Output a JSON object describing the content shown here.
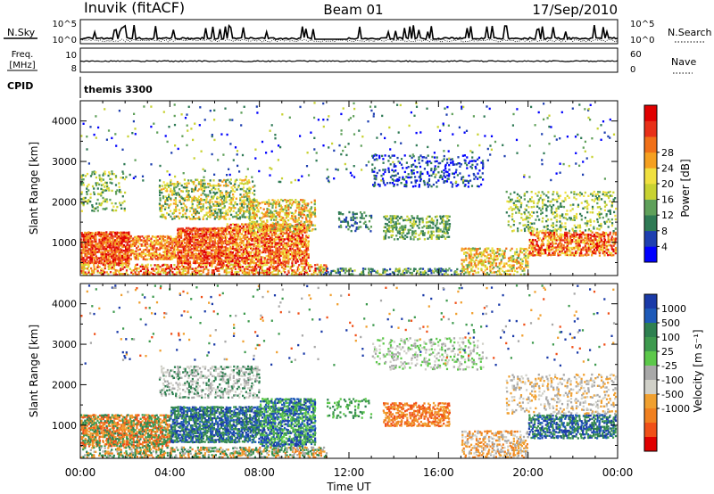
{
  "header": {
    "station": "Inuvik (fitACF)",
    "beam": "Beam 01",
    "date": "17/Sep/2010"
  },
  "strip_panels": {
    "nsky": {
      "label": "N.Sky",
      "scale_top": "10^5",
      "scale_bottom": "10^0"
    },
    "nsearch": {
      "label": "N.Search",
      "scale_top": "10^5",
      "scale_bottom": "10^0"
    },
    "freq": {
      "label_line1": "Freq.",
      "label_line2": "[MHz]",
      "ticks": [
        "10",
        "8"
      ]
    },
    "nave": {
      "label": "Nave",
      "ticks": [
        "60",
        "0"
      ]
    },
    "cpid": {
      "label": "CPID",
      "mode": "themis 3300"
    }
  },
  "chart_data": [
    {
      "type": "heatmap",
      "name": "power",
      "ylabel": "Slant Range [km]",
      "y_ticks": [
        "1000",
        "2000",
        "3000",
        "4000"
      ],
      "y_range_km": [
        180,
        4500
      ],
      "x_range_hours": [
        0,
        24
      ],
      "colorbar": {
        "label": "Power [dB]",
        "ticks": [
          "4",
          "8",
          "12",
          "16",
          "20",
          "24",
          "28"
        ],
        "colors": [
          "#0000ff",
          "#1e3fb0",
          "#2f7a55",
          "#5fa05a",
          "#c8d232",
          "#f0e040",
          "#f5a020",
          "#f07018",
          "#e83018",
          "#e00000"
        ]
      },
      "scatter_regions": [
        {
          "t0": 0.0,
          "t1": 2.2,
          "r0": 500,
          "r1": 1300,
          "density": 0.85,
          "levels": [
            6,
            7,
            8,
            9
          ]
        },
        {
          "t0": 2.2,
          "t1": 4.3,
          "r0": 600,
          "r1": 1200,
          "density": 0.75,
          "levels": [
            5,
            6,
            7,
            8
          ]
        },
        {
          "t0": 4.3,
          "t1": 6.5,
          "r0": 500,
          "r1": 1400,
          "density": 0.85,
          "levels": [
            6,
            7,
            8,
            9
          ]
        },
        {
          "t0": 6.5,
          "t1": 10.2,
          "r0": 500,
          "r1": 1500,
          "density": 0.8,
          "levels": [
            5,
            6,
            7,
            8,
            9
          ]
        },
        {
          "t0": 3.5,
          "t1": 7.8,
          "r0": 1600,
          "r1": 2600,
          "density": 0.45,
          "levels": [
            2,
            3,
            4,
            5,
            6
          ]
        },
        {
          "t0": 7.5,
          "t1": 10.5,
          "r0": 1300,
          "r1": 2100,
          "density": 0.5,
          "levels": [
            3,
            4,
            5,
            6,
            7
          ]
        },
        {
          "t0": 0.0,
          "t1": 2.0,
          "r0": 1800,
          "r1": 2800,
          "density": 0.25,
          "levels": [
            2,
            3,
            4,
            5
          ]
        },
        {
          "t0": 0.0,
          "t1": 11.0,
          "r0": 180,
          "r1": 500,
          "density": 0.6,
          "levels": [
            4,
            5,
            6,
            7,
            8,
            9
          ]
        },
        {
          "t0": 10.5,
          "t1": 17.0,
          "r0": 180,
          "r1": 400,
          "density": 0.45,
          "levels": [
            1,
            2,
            3,
            4
          ]
        },
        {
          "t0": 13.5,
          "t1": 16.5,
          "r0": 1100,
          "r1": 1700,
          "density": 0.55,
          "levels": [
            2,
            3,
            4
          ]
        },
        {
          "t0": 11.5,
          "t1": 13.0,
          "r0": 1300,
          "r1": 1800,
          "density": 0.35,
          "levels": [
            1,
            2,
            3
          ]
        },
        {
          "t0": 13.0,
          "t1": 18.0,
          "r0": 2400,
          "r1": 3200,
          "density": 0.25,
          "levels": [
            0,
            1,
            2
          ]
        },
        {
          "t0": 17.0,
          "t1": 20.0,
          "r0": 180,
          "r1": 900,
          "density": 0.55,
          "levels": [
            3,
            4,
            5,
            6,
            7
          ]
        },
        {
          "t0": 20.0,
          "t1": 24.0,
          "r0": 700,
          "r1": 1300,
          "density": 0.75,
          "levels": [
            5,
            6,
            7,
            8,
            9
          ]
        },
        {
          "t0": 19.0,
          "t1": 24.0,
          "r0": 1300,
          "r1": 2300,
          "density": 0.3,
          "levels": [
            2,
            3,
            4,
            5
          ]
        },
        {
          "t0": 0.0,
          "t1": 24.0,
          "r0": 2500,
          "r1": 4500,
          "density": 0.025,
          "levels": [
            0,
            1,
            2,
            3,
            4
          ]
        }
      ]
    },
    {
      "type": "heatmap",
      "name": "velocity",
      "ylabel": "Slant Range [km]",
      "y_ticks": [
        "1000",
        "2000",
        "3000",
        "4000"
      ],
      "y_range_km": [
        180,
        4500
      ],
      "x_range_hours": [
        0,
        24
      ],
      "xlabel": "Time UT",
      "x_ticks": [
        "00:00",
        "04:00",
        "08:00",
        "12:00",
        "16:00",
        "20:00",
        "00:00"
      ],
      "colorbar": {
        "label": "Velocity [m s⁻¹]",
        "ticks": [
          "1000",
          "500",
          "100",
          "25",
          "-25",
          "-100",
          "-500",
          "-1000"
        ],
        "colors": [
          "#1a3aa8",
          "#1e5ab8",
          "#2e8050",
          "#3e9a4e",
          "#5cc84a",
          "#a8a8a8",
          "#d0d0c8",
          "#f0a030",
          "#f08020",
          "#f05018",
          "#e00000"
        ]
      },
      "scatter_regions": [
        {
          "t0": 0.0,
          "t1": 4.0,
          "r0": 500,
          "r1": 1300,
          "density": 0.8,
          "levels": [
            7,
            8,
            9,
            2,
            3
          ]
        },
        {
          "t0": 4.0,
          "t1": 8.0,
          "r0": 600,
          "r1": 1500,
          "density": 0.8,
          "levels": [
            2,
            3,
            0,
            1
          ]
        },
        {
          "t0": 8.0,
          "t1": 10.5,
          "r0": 500,
          "r1": 1700,
          "density": 0.75,
          "levels": [
            0,
            1,
            3,
            4
          ]
        },
        {
          "t0": 3.5,
          "t1": 8.0,
          "r0": 1700,
          "r1": 2500,
          "density": 0.4,
          "levels": [
            5,
            6,
            2
          ]
        },
        {
          "t0": 0.0,
          "t1": 11.0,
          "r0": 180,
          "r1": 500,
          "density": 0.6,
          "levels": [
            2,
            3,
            7,
            8,
            5
          ]
        },
        {
          "t0": 13.5,
          "t1": 16.5,
          "r0": 1000,
          "r1": 1600,
          "density": 0.6,
          "levels": [
            7,
            8,
            9
          ]
        },
        {
          "t0": 11.0,
          "t1": 13.0,
          "r0": 1200,
          "r1": 1700,
          "density": 0.35,
          "levels": [
            2,
            3,
            4
          ]
        },
        {
          "t0": 13.0,
          "t1": 18.0,
          "r0": 2400,
          "r1": 3200,
          "density": 0.25,
          "levels": [
            5,
            6,
            4
          ]
        },
        {
          "t0": 17.0,
          "t1": 20.0,
          "r0": 180,
          "r1": 900,
          "density": 0.5,
          "levels": [
            6,
            7,
            8,
            5
          ]
        },
        {
          "t0": 20.0,
          "t1": 24.0,
          "r0": 700,
          "r1": 1300,
          "density": 0.75,
          "levels": [
            1,
            2,
            3,
            0
          ]
        },
        {
          "t0": 19.0,
          "t1": 24.0,
          "r0": 1300,
          "r1": 2300,
          "density": 0.3,
          "levels": [
            5,
            6,
            7
          ]
        },
        {
          "t0": 0.0,
          "t1": 24.0,
          "r0": 2500,
          "r1": 4500,
          "density": 0.025,
          "levels": [
            0,
            3,
            7,
            9,
            5
          ]
        }
      ]
    }
  ]
}
